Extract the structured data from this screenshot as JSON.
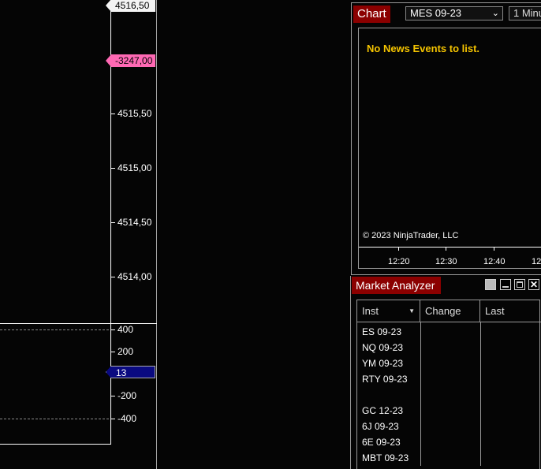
{
  "price_axis": {
    "labels": [
      "4515,50",
      "4515,00",
      "4514,50",
      "4514,00"
    ],
    "last_price": "4516,50",
    "pnl_marker": "-3247,00"
  },
  "indicator_axis": {
    "labels": [
      "400",
      "200",
      "-200",
      "-400"
    ],
    "current_value": "13"
  },
  "chart_window": {
    "title": "Chart",
    "instrument": "MES 09-23",
    "interval": "1 Minu",
    "news_message": "No News Events to list.",
    "copyright": "© 2023 NinjaTrader, LLC",
    "time_labels": [
      "12:20",
      "12:30",
      "12:40",
      "12"
    ]
  },
  "market_analyzer": {
    "title": "Market Analyzer",
    "columns": [
      "Inst",
      "Change",
      "Last"
    ],
    "rows": [
      "ES 09-23",
      "NQ 09-23",
      "YM 09-23",
      "RTY 09-23",
      "",
      "GC 12-23",
      "6J 09-23",
      "6E 09-23",
      "MBT 09-23"
    ]
  },
  "colors": {
    "title_bg": "#8b0000",
    "news_text": "#f5c400",
    "pnl_marker": "#ff69b4",
    "indicator_marker": "#0a0a80"
  }
}
